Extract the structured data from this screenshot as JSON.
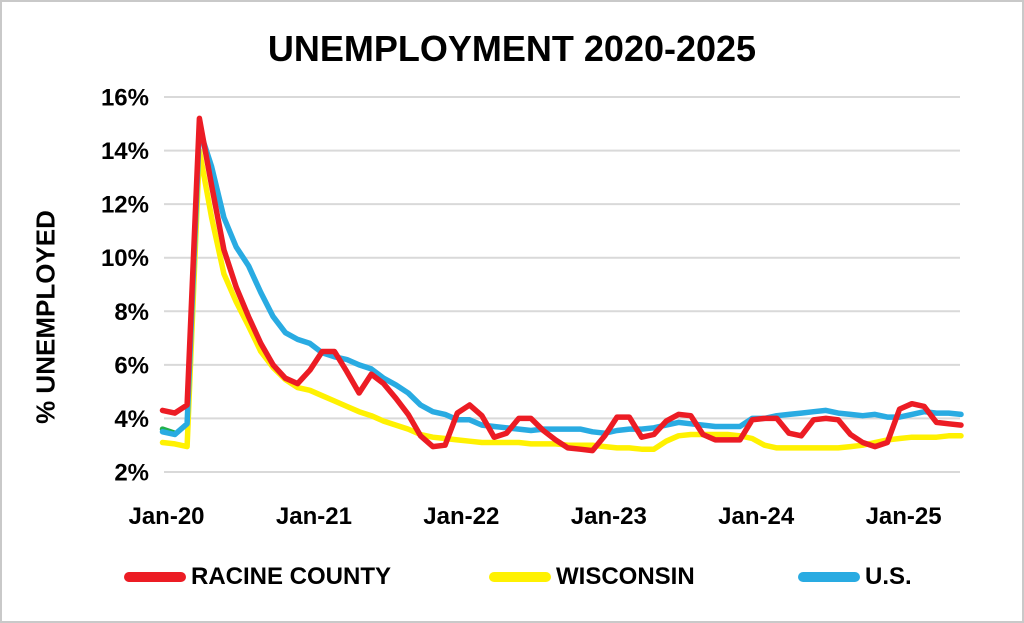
{
  "page": {
    "background_color": "#ffffff",
    "border_color": "#c9c9c9"
  },
  "chart": {
    "title": "UNEMPLOYMENT 2020-2025",
    "y_axis_title": "% UNEMPLOYED",
    "text_color": "#000000",
    "gridline_color": "#d9d9d9"
  },
  "legend": {
    "items": [
      {
        "label": "RACINE COUNTY",
        "color": "#ec1c24"
      },
      {
        "label": "WISCONSIN",
        "color": "#fff101"
      },
      {
        "label": "U.S.",
        "color": "#29abe2"
      }
    ]
  },
  "chart_data": {
    "type": "line",
    "title": "UNEMPLOYMENT 2020-2025",
    "xlabel": "",
    "ylabel": "% UNEMPLOYED",
    "x_interval": "monthly",
    "x_start_month": "Jan-2020",
    "x_end_month": "Jun-2025",
    "ylim": [
      2,
      16
    ],
    "grid": "horizontal-only",
    "legend_position": "bottom",
    "y_ticks": [
      {
        "label": "2%",
        "value": 2
      },
      {
        "label": "4%",
        "value": 4
      },
      {
        "label": "6%",
        "value": 6
      },
      {
        "label": "8%",
        "value": 8
      },
      {
        "label": "10%",
        "value": 10
      },
      {
        "label": "12%",
        "value": 12
      },
      {
        "label": "14%",
        "value": 14
      },
      {
        "label": "16%",
        "value": 16
      }
    ],
    "x_ticks": [
      {
        "label": "Jan-20",
        "month_index": 0
      },
      {
        "label": "Jan-21",
        "month_index": 12
      },
      {
        "label": "Jan-22",
        "month_index": 24
      },
      {
        "label": "Jan-23",
        "month_index": 36
      },
      {
        "label": "Jan-24",
        "month_index": 48
      },
      {
        "label": "Jan-25",
        "month_index": 60
      }
    ],
    "series": [
      {
        "id": "green-artifact",
        "name": "(unlabeled short green segment at chart start)",
        "color": "#22b14c",
        "in_legend": false,
        "z": 0,
        "values": [
          3.6,
          3.45
        ]
      },
      {
        "id": "wisconsin",
        "name": "WISCONSIN",
        "color": "#fff101",
        "in_legend": true,
        "z": 1,
        "values": [
          3.1,
          3.05,
          2.95,
          14.0,
          11.5,
          9.4,
          8.35,
          7.45,
          6.5,
          5.9,
          5.45,
          5.15,
          5.05,
          4.85,
          4.65,
          4.45,
          4.25,
          4.1,
          3.9,
          3.75,
          3.6,
          3.4,
          3.3,
          3.25,
          3.2,
          3.15,
          3.1,
          3.1,
          3.1,
          3.1,
          3.05,
          3.05,
          3.05,
          3.0,
          3.0,
          3.0,
          2.95,
          2.9,
          2.9,
          2.85,
          2.85,
          3.15,
          3.35,
          3.4,
          3.4,
          3.4,
          3.4,
          3.35,
          3.25,
          3.0,
          2.9,
          2.9,
          2.9,
          2.9,
          2.9,
          2.9,
          2.95,
          3.0,
          3.1,
          3.2,
          3.25,
          3.3,
          3.3,
          3.3,
          3.35,
          3.35
        ]
      },
      {
        "id": "us",
        "name": "U.S.",
        "color": "#29abe2",
        "in_legend": true,
        "z": 2,
        "values": [
          3.5,
          3.4,
          3.8,
          14.8,
          13.4,
          11.5,
          10.4,
          9.7,
          8.7,
          7.8,
          7.2,
          6.95,
          6.8,
          6.45,
          6.3,
          6.2,
          6.0,
          5.85,
          5.5,
          5.25,
          4.95,
          4.5,
          4.25,
          4.15,
          3.95,
          3.95,
          3.75,
          3.7,
          3.65,
          3.6,
          3.55,
          3.6,
          3.6,
          3.6,
          3.6,
          3.5,
          3.45,
          3.55,
          3.6,
          3.6,
          3.65,
          3.75,
          3.85,
          3.8,
          3.75,
          3.7,
          3.7,
          3.7,
          4.0,
          4.0,
          4.1,
          4.15,
          4.2,
          4.25,
          4.3,
          4.2,
          4.15,
          4.1,
          4.15,
          4.05,
          4.05,
          4.15,
          4.25,
          4.2,
          4.2,
          4.15
        ]
      },
      {
        "id": "racine-county",
        "name": "RACINE COUNTY",
        "color": "#ec1c24",
        "in_legend": true,
        "z": 3,
        "values": [
          4.3,
          4.2,
          4.5,
          15.2,
          12.7,
          10.3,
          8.9,
          7.8,
          6.8,
          6.0,
          5.5,
          5.3,
          5.8,
          6.5,
          6.5,
          5.75,
          4.95,
          5.65,
          5.3,
          4.75,
          4.15,
          3.35,
          2.95,
          3.0,
          4.2,
          4.5,
          4.1,
          3.3,
          3.45,
          4.0,
          4.0,
          3.55,
          3.2,
          2.9,
          2.85,
          2.8,
          3.35,
          4.05,
          4.05,
          3.3,
          3.4,
          3.9,
          4.15,
          4.1,
          3.4,
          3.2,
          3.2,
          3.2,
          3.95,
          4.0,
          4.0,
          3.45,
          3.35,
          3.95,
          4.0,
          3.95,
          3.4,
          3.1,
          2.95,
          3.1,
          4.35,
          4.55,
          4.45,
          3.85,
          3.8,
          3.75
        ]
      }
    ]
  }
}
